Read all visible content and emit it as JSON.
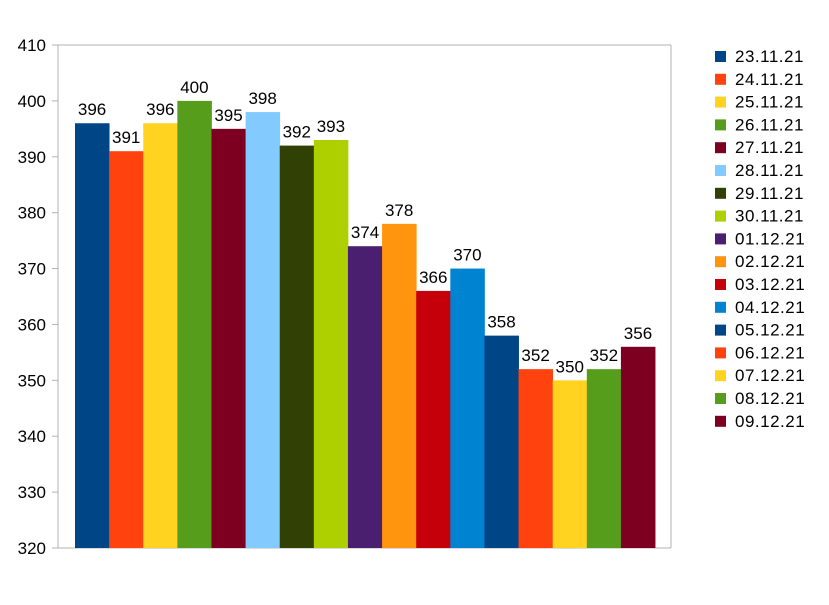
{
  "chart_data": {
    "type": "bar",
    "categories": [
      "23.11.21",
      "24.11.21",
      "25.11.21",
      "26.11.21",
      "27.11.21",
      "28.11.21",
      "29.11.21",
      "30.11.21",
      "01.12.21",
      "02.12.21",
      "03.12.21",
      "04.12.21",
      "05.12.21",
      "06.12.21",
      "07.12.21",
      "08.12.21",
      "09.12.21"
    ],
    "values": [
      396,
      391,
      396,
      400,
      395,
      398,
      392,
      393,
      374,
      378,
      366,
      370,
      358,
      352,
      350,
      352,
      356
    ],
    "colors": [
      "#004586",
      "#ff420e",
      "#ffd320",
      "#579d1c",
      "#7e0021",
      "#83caff",
      "#314004",
      "#aecf00",
      "#4b1f6f",
      "#ff950e",
      "#c5000b",
      "#0084d1",
      "#004586",
      "#ff420e",
      "#ffd320",
      "#579d1c",
      "#7e0021"
    ],
    "yticks": [
      320,
      330,
      340,
      350,
      360,
      370,
      380,
      390,
      400,
      410
    ],
    "ylim": [
      320,
      410
    ],
    "grid": false,
    "legend_position": "right",
    "title": "",
    "xlabel": "",
    "ylabel": ""
  }
}
